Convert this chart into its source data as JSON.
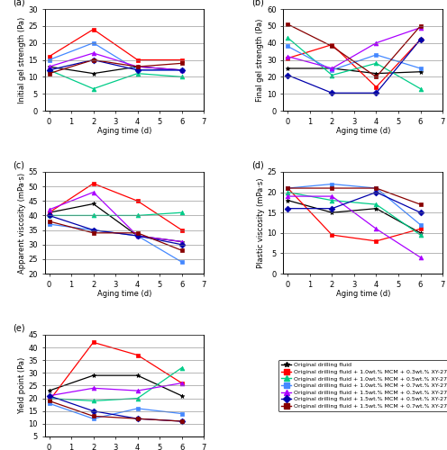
{
  "x": [
    0,
    2,
    4,
    6
  ],
  "series": {
    "labels": [
      "Original drilling fluid",
      "Original drilling fluid + 1.0wt.% MCM + 0.3wt.% XY-27",
      "Original drilling fluid + 1.0wt.% MCM + 0.5wt.% XY-27",
      "Original drilling fluid + 1.0wt.% MCM + 0.7wt.% XY-27",
      "Original drilling fluid + 1.5wt.% MCM + 0.3wt.% XY-27",
      "Original drilling fluid + 1.5wt.% MCM + 0.5wt.% XY-27",
      "Original drilling fluid + 1.5wt.% MCM + 0.7wt.% XY-27"
    ],
    "colors": [
      "#000000",
      "#ff0000",
      "#00cc88",
      "#4488ff",
      "#aa00ff",
      "#0000aa",
      "#880000"
    ],
    "markers": [
      "*",
      "s",
      "^",
      "s",
      "^",
      "D",
      "s"
    ]
  },
  "subplot_a": {
    "title": "(a)",
    "ylabel": "Initial gel strength (Pa)",
    "ylim": [
      0,
      30
    ],
    "yticks": [
      0,
      5,
      10,
      15,
      20,
      25,
      30
    ],
    "data": [
      [
        13,
        11,
        13,
        12
      ],
      [
        16,
        24,
        15,
        15
      ],
      [
        12,
        6.5,
        11,
        10
      ],
      [
        15,
        20,
        12,
        12
      ],
      [
        13,
        17,
        13,
        12
      ],
      [
        12,
        15,
        12,
        12
      ],
      [
        11,
        15,
        13,
        14
      ]
    ]
  },
  "subplot_b": {
    "title": "(b)",
    "ylabel": "Final gel strength (Pa)",
    "ylim": [
      0,
      60
    ],
    "yticks": [
      0,
      10,
      20,
      30,
      40,
      50,
      60
    ],
    "data": [
      [
        25,
        25,
        22,
        23
      ],
      [
        31,
        39,
        14,
        42
      ],
      [
        43,
        21,
        28,
        13
      ],
      [
        38,
        24,
        33,
        25
      ],
      [
        32,
        25,
        40,
        49
      ],
      [
        21,
        10.5,
        10.5,
        42
      ],
      [
        51,
        38,
        20,
        50
      ]
    ]
  },
  "subplot_c": {
    "title": "(c)",
    "ylabel": "Apparent viscosity (mPa·s)",
    "ylim": [
      20,
      55
    ],
    "yticks": [
      20,
      25,
      30,
      35,
      40,
      45,
      50,
      55
    ],
    "data": [
      [
        41,
        44,
        33,
        31
      ],
      [
        41,
        51,
        45,
        35
      ],
      [
        40,
        40,
        40,
        41
      ],
      [
        37,
        35,
        33,
        24
      ],
      [
        42,
        48,
        33,
        31
      ],
      [
        40,
        35,
        33,
        30
      ],
      [
        38,
        34,
        34,
        28
      ]
    ]
  },
  "subplot_d": {
    "title": "(d)",
    "ylabel": "Plastic viscosity (mPa·s)",
    "ylim": [
      0,
      25
    ],
    "yticks": [
      0,
      5,
      10,
      15,
      20,
      25
    ],
    "data": [
      [
        18,
        15,
        16,
        10
      ],
      [
        21,
        9.5,
        8,
        11
      ],
      [
        20,
        18,
        17,
        9.5
      ],
      [
        21,
        22,
        21,
        12
      ],
      [
        19,
        19,
        11,
        4
      ],
      [
        16,
        16,
        20,
        15
      ],
      [
        21,
        21,
        21,
        17
      ]
    ]
  },
  "subplot_e": {
    "title": "(e)",
    "ylabel": "Yield point (Pa)",
    "ylim": [
      5,
      45
    ],
    "yticks": [
      5,
      10,
      15,
      20,
      25,
      30,
      35,
      40,
      45
    ],
    "data": [
      [
        23,
        29,
        29,
        21
      ],
      [
        19,
        42,
        37,
        26
      ],
      [
        20,
        19,
        20,
        32
      ],
      [
        18,
        12,
        16,
        14
      ],
      [
        21,
        24,
        23,
        26
      ],
      [
        21,
        15,
        12,
        11
      ],
      [
        19,
        13,
        12,
        11
      ]
    ]
  }
}
